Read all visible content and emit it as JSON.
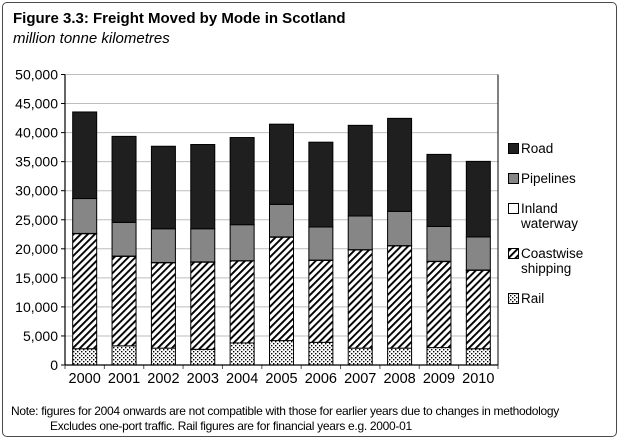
{
  "figure": {
    "title": "Figure 3.3: Freight Moved by Mode in Scotland",
    "subtitle": "million tonne kilometres",
    "note_line1": "Note: figures for 2004 onwards are not compatible with those for earlier years due to changes in methodology",
    "note_line2": "Excludes one-port traffic. Rail figures are for financial years e.g. 2000-01"
  },
  "chart_data": {
    "type": "bar",
    "stacked": true,
    "title": "Figure 3.3: Freight Moved by Mode in Scotland",
    "subtitle": "million tonne kilometres",
    "unit": "million tonne kilometres",
    "categories": [
      "2000",
      "2001",
      "2002",
      "2003",
      "2004",
      "2005",
      "2006",
      "2007",
      "2008",
      "2009",
      "2010"
    ],
    "series": [
      {
        "name": "Rail",
        "fill": "dots",
        "color": "#ffffff",
        "values": [
          2800,
          3300,
          2900,
          2700,
          3800,
          4200,
          3900,
          2900,
          2900,
          3000,
          2800
        ]
      },
      {
        "name": "Coastwise shipping",
        "fill": "hatch",
        "color": "#ffffff",
        "values": [
          19800,
          15400,
          14700,
          15000,
          14100,
          17800,
          14100,
          16900,
          17600,
          14800,
          13500
        ]
      },
      {
        "name": "Inland waterway",
        "fill": "white",
        "color": "#ffffff",
        "values": [
          50,
          50,
          50,
          50,
          50,
          50,
          50,
          50,
          50,
          50,
          50
        ]
      },
      {
        "name": "Pipelines",
        "fill": "gray",
        "color": "#868686",
        "values": [
          6000,
          5800,
          5800,
          5700,
          6200,
          5600,
          5700,
          5800,
          5900,
          6000,
          5700
        ]
      },
      {
        "name": "Road",
        "fill": "black",
        "color": "#1f1f1f",
        "values": [
          14900,
          14800,
          14200,
          14500,
          15000,
          13800,
          14600,
          15600,
          16000,
          12400,
          13000
        ]
      }
    ],
    "totals": [
      43550,
      39350,
      37650,
      37950,
      39150,
      41450,
      38350,
      41250,
      42450,
      36250,
      35050
    ],
    "legend": [
      {
        "label": "Road",
        "fill": "black",
        "color": "#1f1f1f"
      },
      {
        "label": "Pipelines",
        "fill": "gray",
        "color": "#868686"
      },
      {
        "label": "Inland waterway",
        "fill": "white",
        "color": "#ffffff"
      },
      {
        "label": "Coastwise shipping",
        "fill": "hatch",
        "color": "#ffffff"
      },
      {
        "label": "Rail",
        "fill": "dots",
        "color": "#ffffff"
      }
    ],
    "legend_position": "right",
    "xlabel": "",
    "ylabel": "",
    "ylim": [
      0,
      50000
    ],
    "ytick_step": 5000,
    "grid": true,
    "colors": {
      "gridline": "#bdbdbd",
      "axis": "#000000",
      "bar_border": "#000000",
      "x_tick": "#555555"
    }
  }
}
